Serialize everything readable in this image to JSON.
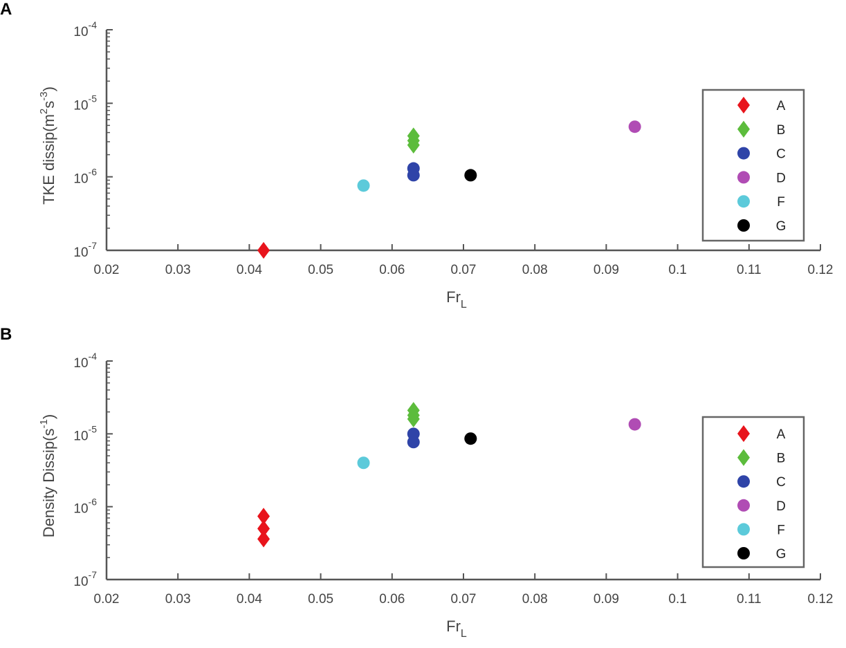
{
  "figure": {
    "panels": [
      {
        "letter": "A"
      },
      {
        "letter": "B"
      }
    ]
  },
  "colors": {
    "A": "#e8141c",
    "B": "#5cbc3c",
    "C": "#2f44a8",
    "D": "#b04cb4",
    "F": "#5ccada",
    "G": "#000000",
    "axis": "#555555"
  },
  "chart_data": [
    {
      "type": "scatter",
      "panel": "A",
      "title": "",
      "xlabel": "Fr_L",
      "ylabel": "TKE dissip(m^2 s^-3)",
      "xscale": "linear",
      "yscale": "log",
      "xlim": [
        0.02,
        0.12
      ],
      "ylim": [
        1e-07,
        0.0001
      ],
      "xticks": [
        "0.02",
        "0.03",
        "0.04",
        "0.05",
        "0.06",
        "0.07",
        "0.08",
        "0.09",
        "0.1",
        "0.11",
        "0.12"
      ],
      "yticks": [
        "10^-7",
        "10^-6",
        "10^-5",
        "10^-4"
      ],
      "grid": false,
      "legend_position": "right",
      "series": [
        {
          "name": "A",
          "marker": "diamond",
          "points": [
            [
              0.042,
              1e-07
            ]
          ]
        },
        {
          "name": "B",
          "marker": "diamond",
          "points": [
            [
              0.063,
              3.6e-06
            ],
            [
              0.063,
              3.1e-06
            ],
            [
              0.063,
              2.7e-06
            ]
          ]
        },
        {
          "name": "C",
          "marker": "circle",
          "points": [
            [
              0.063,
              1.3e-06
            ],
            [
              0.063,
              1.05e-06
            ]
          ]
        },
        {
          "name": "D",
          "marker": "circle",
          "points": [
            [
              0.094,
              4.8e-06
            ]
          ]
        },
        {
          "name": "F",
          "marker": "circle",
          "points": [
            [
              0.056,
              7.6e-07
            ]
          ]
        },
        {
          "name": "G",
          "marker": "circle",
          "points": [
            [
              0.071,
              1.05e-06
            ]
          ]
        }
      ]
    },
    {
      "type": "scatter",
      "panel": "B",
      "title": "",
      "xlabel": "Fr_L",
      "ylabel": "Density Dissip(s^-1)",
      "xscale": "linear",
      "yscale": "log",
      "xlim": [
        0.02,
        0.12
      ],
      "ylim": [
        1e-07,
        0.0001
      ],
      "xticks": [
        "0.02",
        "0.03",
        "0.04",
        "0.05",
        "0.06",
        "0.07",
        "0.08",
        "0.09",
        "0.1",
        "0.11",
        "0.12"
      ],
      "yticks": [
        "10^-7",
        "10^-6",
        "10^-5",
        "10^-4"
      ],
      "grid": false,
      "legend_position": "right",
      "series": [
        {
          "name": "A",
          "marker": "diamond",
          "points": [
            [
              0.042,
              7.4e-07
            ],
            [
              0.042,
              5e-07
            ],
            [
              0.042,
              3.6e-07
            ]
          ]
        },
        {
          "name": "B",
          "marker": "diamond",
          "points": [
            [
              0.063,
              2.1e-05
            ],
            [
              0.063,
              1.8e-05
            ],
            [
              0.063,
              1.6e-05
            ]
          ]
        },
        {
          "name": "C",
          "marker": "circle",
          "points": [
            [
              0.063,
              1e-05
            ],
            [
              0.063,
              7.7e-06
            ]
          ]
        },
        {
          "name": "D",
          "marker": "circle",
          "points": [
            [
              0.094,
              1.35e-05
            ]
          ]
        },
        {
          "name": "F",
          "marker": "circle",
          "points": [
            [
              0.056,
              4e-06
            ]
          ]
        },
        {
          "name": "G",
          "marker": "circle",
          "points": [
            [
              0.071,
              8.6e-06
            ]
          ]
        }
      ]
    }
  ]
}
